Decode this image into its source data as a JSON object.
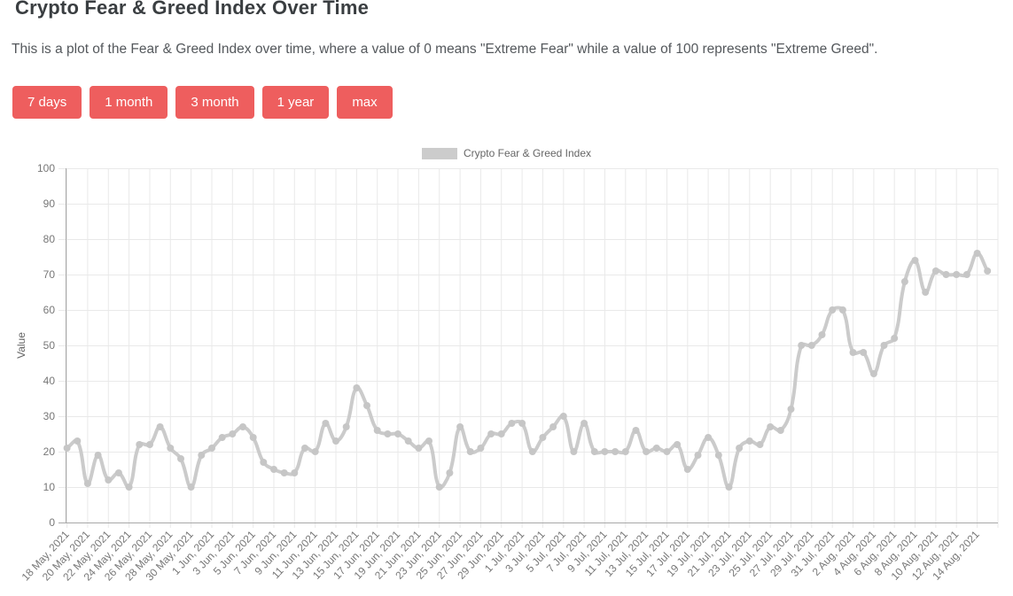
{
  "page": {
    "title": "Crypto Fear & Greed Index Over Time",
    "description": "This is a plot of the Fear & Greed Index over time, where a value of 0 means \"Extreme Fear\" while a value of 100 represents \"Extreme Greed\".",
    "range_buttons": [
      "7 days",
      "1 month",
      "3 month",
      "1 year",
      "max"
    ],
    "accent_color": "#ee5e5e"
  },
  "chart_data": {
    "type": "line",
    "legend_label": "Crypto Fear & Greed Index",
    "legend_position": "top",
    "ylabel": "Value",
    "ylim": [
      0,
      100
    ],
    "y_ticks": [
      0,
      10,
      20,
      30,
      40,
      50,
      60,
      70,
      80,
      90,
      100
    ],
    "x_start": "18 May, 2021",
    "x_end": "15 Aug, 2021",
    "frequency": "daily",
    "grid": true,
    "line_color": "#cbcbcb",
    "point_color": "#c6c6c6",
    "grid_color": "#e9e9e9",
    "axis_color": "#a8a8a8",
    "tick_text_color": "#777777",
    "x_tick_labels": [
      "18 May, 2021",
      "20 May, 2021",
      "22 May, 2021",
      "24 May, 2021",
      "26 May, 2021",
      "28 May, 2021",
      "30 May, 2021",
      "1 Jun, 2021",
      "3 Jun, 2021",
      "5 Jun, 2021",
      "7 Jun, 2021",
      "9 Jun, 2021",
      "11 Jun, 2021",
      "13 Jun, 2021",
      "15 Jun, 2021",
      "17 Jun, 2021",
      "19 Jun, 2021",
      "21 Jun, 2021",
      "23 Jun, 2021",
      "25 Jun, 2021",
      "27 Jun, 2021",
      "29 Jun, 2021",
      "1 Jul, 2021",
      "3 Jul, 2021",
      "5 Jul, 2021",
      "7 Jul, 2021",
      "9 Jul, 2021",
      "11 Jul, 2021",
      "13 Jul, 2021",
      "15 Jul, 2021",
      "17 Jul, 2021",
      "19 Jul, 2021",
      "21 Jul, 2021",
      "23 Jul, 2021",
      "25 Jul, 2021",
      "27 Jul, 2021",
      "29 Jul, 2021",
      "31 Jul, 2021",
      "2 Aug, 2021",
      "4 Aug, 2021",
      "6 Aug, 2021",
      "8 Aug, 2021",
      "10 Aug, 2021",
      "12 Aug, 2021",
      "14 Aug, 2021"
    ],
    "values": [
      21,
      23,
      11,
      19,
      12,
      14,
      10,
      22,
      22,
      27,
      21,
      18,
      10,
      19,
      21,
      24,
      25,
      27,
      24,
      17,
      15,
      14,
      14,
      21,
      20,
      28,
      23,
      27,
      38,
      33,
      26,
      25,
      25,
      23,
      21,
      23,
      10,
      14,
      27,
      20,
      21,
      25,
      25,
      28,
      28,
      20,
      24,
      27,
      30,
      20,
      28,
      20,
      20,
      20,
      20,
      26,
      20,
      21,
      20,
      22,
      15,
      19,
      24,
      19,
      10,
      21,
      23,
      22,
      27,
      26,
      32,
      50,
      50,
      53,
      60,
      60,
      48,
      48,
      42,
      50,
      52,
      68,
      74,
      65,
      71,
      70,
      70,
      70,
      76,
      71
    ]
  }
}
